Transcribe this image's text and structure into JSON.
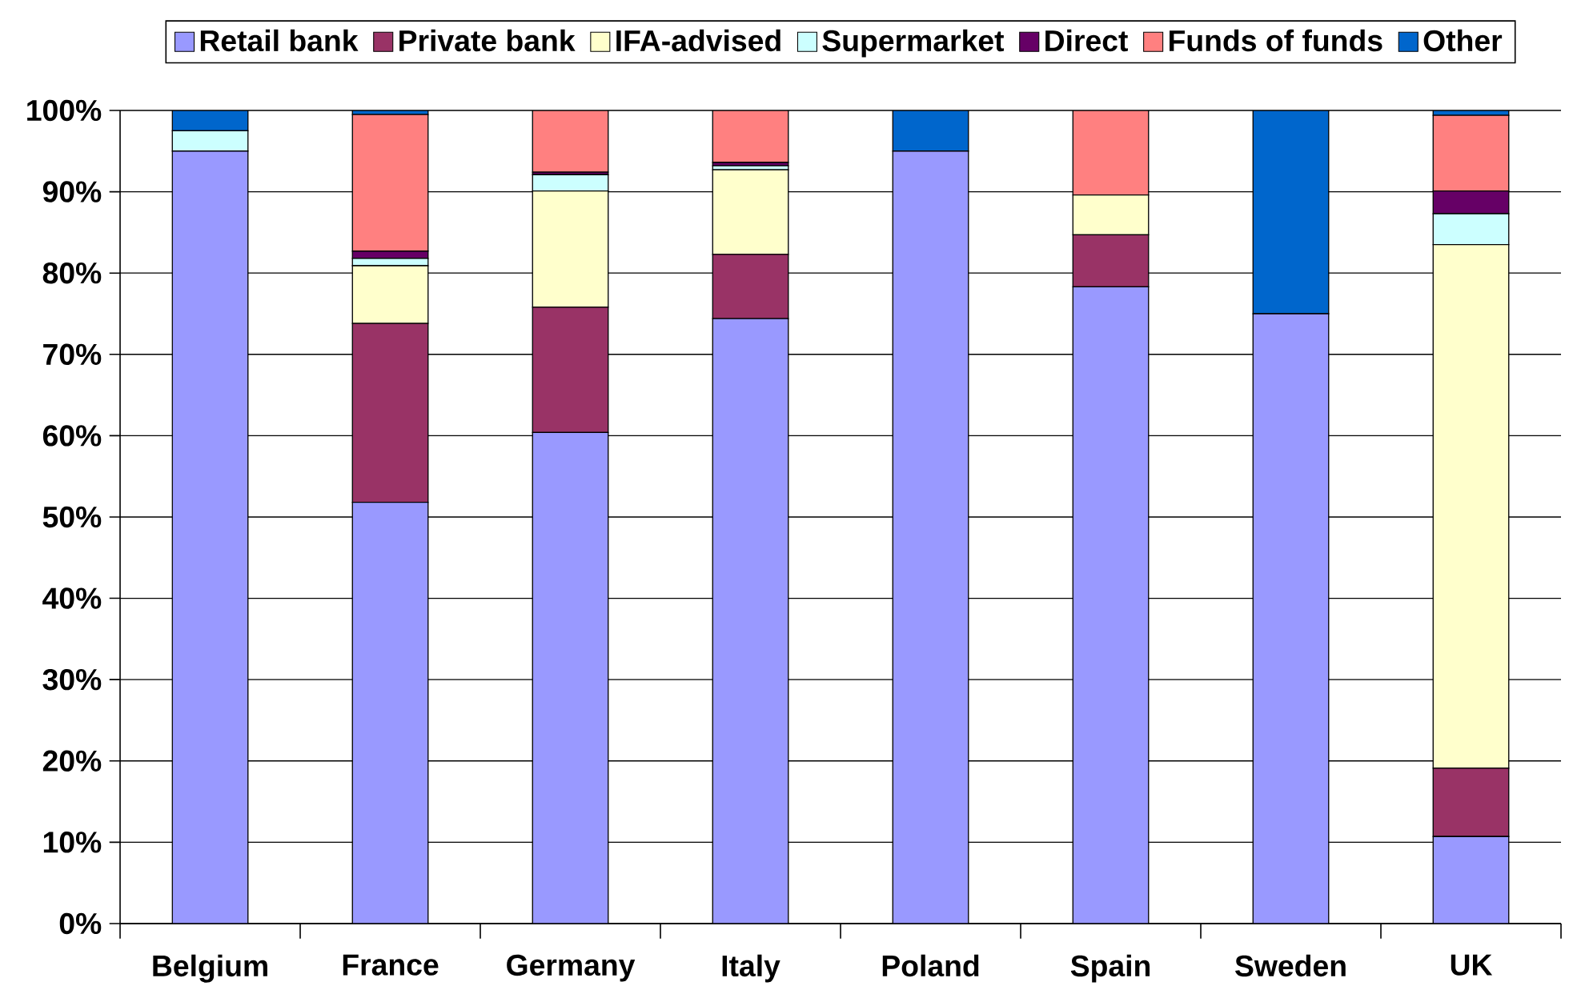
{
  "chart_data": {
    "type": "bar",
    "stacked": true,
    "categories": [
      "Belgium",
      "France",
      "Germany",
      "Italy",
      "Poland",
      "Spain",
      "Sweden",
      "UK"
    ],
    "series": [
      {
        "name": "Retail bank",
        "color": "#9999ff",
        "values": [
          95,
          51.8,
          60.4,
          74.4,
          95,
          78.3,
          75,
          10.7
        ]
      },
      {
        "name": "Private bank",
        "color": "#993366",
        "values": [
          0,
          22,
          15.4,
          7.9,
          0,
          6.4,
          0,
          8.4
        ]
      },
      {
        "name": "IFA-advised",
        "color": "#ffffcc",
        "values": [
          0,
          7.1,
          14.3,
          10.4,
          0,
          4.9,
          0,
          64.4
        ]
      },
      {
        "name": "Supermarket",
        "color": "#ccffff",
        "values": [
          2.5,
          0.9,
          2,
          0.5,
          0,
          0,
          0,
          3.8
        ]
      },
      {
        "name": "Direct",
        "color": "#660066",
        "values": [
          0,
          0.9,
          0.3,
          0.4,
          0,
          0,
          0,
          2.8
        ]
      },
      {
        "name": "Funds of funds",
        "color": "#ff8080",
        "values": [
          0,
          16.8,
          7.6,
          6.4,
          0,
          10.4,
          0,
          9.3
        ]
      },
      {
        "name": "Other",
        "color": "#0066cc",
        "values": [
          2.5,
          0.5,
          0,
          0,
          5,
          0,
          25,
          0.6
        ]
      }
    ],
    "ylim": [
      0,
      100
    ],
    "yticks": [
      {
        "value": 0,
        "label": "0%"
      },
      {
        "value": 10,
        "label": "10%"
      },
      {
        "value": 20,
        "label": "20%"
      },
      {
        "value": 30,
        "label": "30%"
      },
      {
        "value": 40,
        "label": "40%"
      },
      {
        "value": 50,
        "label": "50%"
      },
      {
        "value": 60,
        "label": "60%"
      },
      {
        "value": 70,
        "label": "70%"
      },
      {
        "value": 80,
        "label": "80%"
      },
      {
        "value": 90,
        "label": "90%"
      },
      {
        "value": 100,
        "label": "100%"
      }
    ],
    "grid": "y",
    "legend": "top"
  }
}
